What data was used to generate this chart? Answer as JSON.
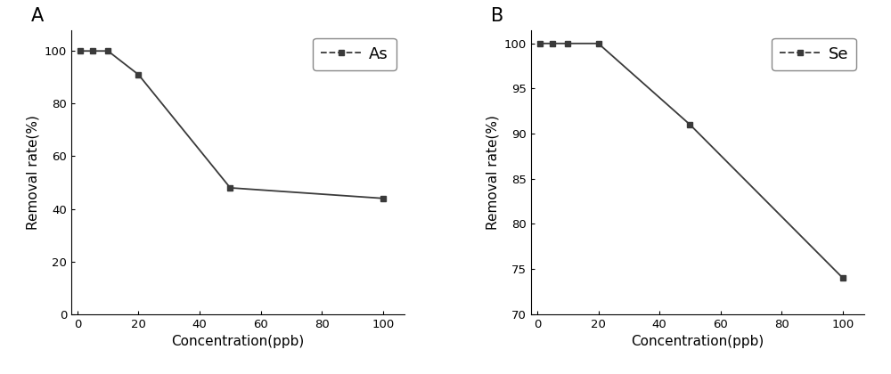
{
  "panel_A": {
    "label": "A",
    "x": [
      1,
      5,
      10,
      20,
      50,
      100
    ],
    "y": [
      100,
      100,
      100,
      91,
      48,
      44
    ],
    "xlabel": "Concentration(ppb)",
    "ylabel": "Removal rate(%)",
    "legend_label": "As",
    "ylim": [
      0,
      108
    ],
    "yticks": [
      0,
      20,
      40,
      60,
      80,
      100
    ],
    "xlim": [
      -2,
      107
    ],
    "xticks": [
      0,
      20,
      40,
      60,
      80,
      100
    ]
  },
  "panel_B": {
    "label": "B",
    "x": [
      1,
      5,
      10,
      20,
      50,
      100
    ],
    "y": [
      100,
      100,
      100,
      100,
      91,
      74
    ],
    "xlabel": "Concentration(ppb)",
    "ylabel": "Removal rate(%)",
    "legend_label": "Se",
    "ylim": [
      70,
      101.5
    ],
    "yticks": [
      70,
      75,
      80,
      85,
      90,
      95,
      100
    ],
    "xlim": [
      -2,
      107
    ],
    "xticks": [
      0,
      20,
      40,
      60,
      80,
      100
    ]
  },
  "line_color": "#3a3a3a",
  "marker": "s",
  "markersize": 5,
  "linewidth": 1.3,
  "linestyle": "-",
  "legend_fontsize": 13,
  "axis_label_fontsize": 11,
  "tick_fontsize": 9.5,
  "panel_label_fontsize": 15,
  "background_color": "#ffffff"
}
